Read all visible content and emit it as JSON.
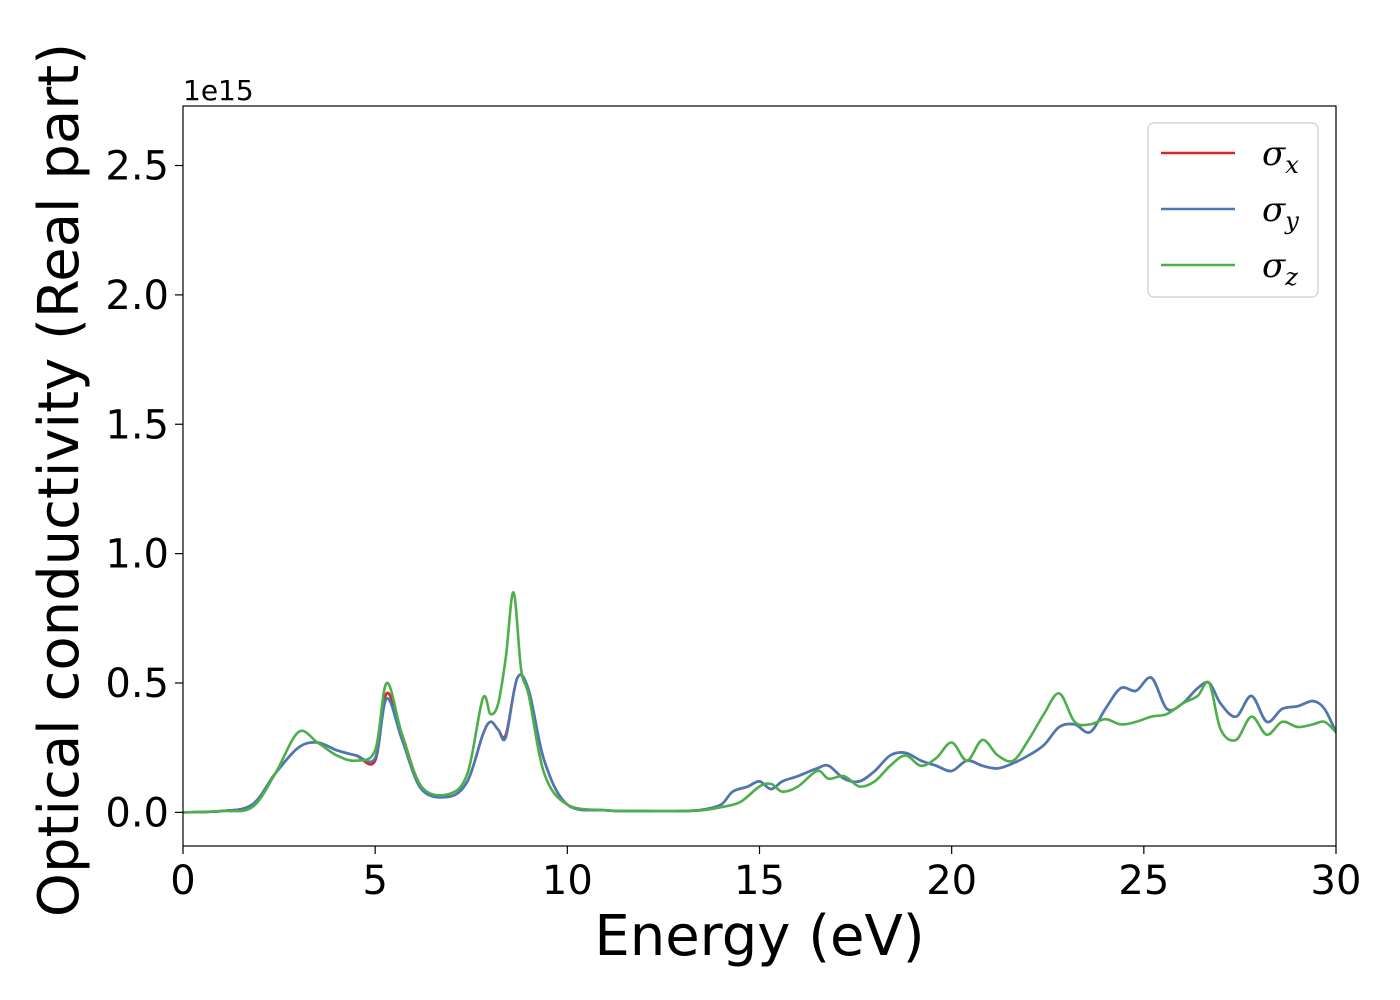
{
  "chart_data": {
    "type": "line",
    "xlabel": "Energy (eV)",
    "ylabel": "Optical conductivity (Real part)",
    "y_offset_text": "1e15",
    "xlim": [
      0,
      30
    ],
    "ylim": [
      -0.13,
      2.73
    ],
    "x_ticks": [
      0,
      5,
      10,
      15,
      20,
      25,
      30
    ],
    "x_tick_labels": [
      "0",
      "5",
      "10",
      "15",
      "20",
      "25",
      "30"
    ],
    "y_ticks": [
      0.0,
      0.5,
      1.0,
      1.5,
      2.0,
      2.5
    ],
    "y_tick_labels": [
      "0.0",
      "0.5",
      "1.0",
      "1.5",
      "2.0",
      "2.5"
    ],
    "grid": false,
    "legend_position": "top-right",
    "series": [
      {
        "name": "σx",
        "symbol": "σ",
        "subscript": "x",
        "color": "#d62728",
        "x": [
          0,
          1,
          1.8,
          2.4,
          3.0,
          3.5,
          4.0,
          4.5,
          5.0,
          5.3,
          5.7,
          6.2,
          6.9,
          7.4,
          7.8,
          8.0,
          8.2,
          8.4,
          8.7,
          9.0,
          9.4,
          10.0,
          11,
          12,
          13,
          13.5,
          14.0,
          14.3,
          14.7,
          15.0,
          15.3,
          15.6,
          16.0,
          16.5,
          16.8,
          17.2,
          17.6,
          18.0,
          18.4,
          18.8,
          19.2,
          19.6,
          20.0,
          20.4,
          20.8,
          21.2,
          21.6,
          22.0,
          22.4,
          22.8,
          23.2,
          23.6,
          24.0,
          24.4,
          24.8,
          25.2,
          25.6,
          26.0,
          26.4,
          26.7,
          27.0,
          27.4,
          27.8,
          28.2,
          28.6,
          29.0,
          29.4,
          29.7,
          30.0
        ],
        "y": [
          0.0,
          0.005,
          0.03,
          0.15,
          0.25,
          0.27,
          0.24,
          0.22,
          0.2,
          0.46,
          0.3,
          0.1,
          0.06,
          0.12,
          0.3,
          0.35,
          0.32,
          0.3,
          0.52,
          0.47,
          0.2,
          0.03,
          0.008,
          0.005,
          0.005,
          0.01,
          0.03,
          0.08,
          0.1,
          0.12,
          0.09,
          0.12,
          0.14,
          0.17,
          0.18,
          0.13,
          0.12,
          0.16,
          0.22,
          0.23,
          0.2,
          0.18,
          0.16,
          0.2,
          0.18,
          0.17,
          0.19,
          0.22,
          0.26,
          0.33,
          0.34,
          0.31,
          0.4,
          0.48,
          0.47,
          0.52,
          0.4,
          0.42,
          0.48,
          0.5,
          0.42,
          0.37,
          0.45,
          0.35,
          0.4,
          0.41,
          0.43,
          0.4,
          0.31
        ]
      },
      {
        "name": "σy",
        "symbol": "σ",
        "subscript": "y",
        "color": "#4a7ab5",
        "x": [
          0,
          1,
          1.8,
          2.4,
          3.0,
          3.5,
          4.0,
          4.5,
          5.0,
          5.3,
          5.7,
          6.2,
          6.9,
          7.4,
          7.8,
          8.0,
          8.2,
          8.4,
          8.7,
          9.0,
          9.4,
          10.0,
          11,
          12,
          13,
          13.5,
          14.0,
          14.3,
          14.7,
          15.0,
          15.3,
          15.6,
          16.0,
          16.5,
          16.8,
          17.2,
          17.6,
          18.0,
          18.4,
          18.8,
          19.2,
          19.6,
          20.0,
          20.4,
          20.8,
          21.2,
          21.6,
          22.0,
          22.4,
          22.8,
          23.2,
          23.6,
          24.0,
          24.4,
          24.8,
          25.2,
          25.6,
          26.0,
          26.4,
          26.7,
          27.0,
          27.4,
          27.8,
          28.2,
          28.6,
          29.0,
          29.4,
          29.7,
          30.0
        ],
        "y": [
          0.0,
          0.005,
          0.03,
          0.15,
          0.25,
          0.27,
          0.24,
          0.22,
          0.21,
          0.44,
          0.28,
          0.09,
          0.06,
          0.12,
          0.3,
          0.35,
          0.32,
          0.29,
          0.52,
          0.47,
          0.2,
          0.03,
          0.008,
          0.005,
          0.005,
          0.01,
          0.03,
          0.08,
          0.1,
          0.12,
          0.09,
          0.12,
          0.14,
          0.17,
          0.18,
          0.13,
          0.12,
          0.16,
          0.22,
          0.23,
          0.2,
          0.18,
          0.16,
          0.2,
          0.18,
          0.17,
          0.19,
          0.22,
          0.26,
          0.33,
          0.34,
          0.31,
          0.4,
          0.48,
          0.47,
          0.52,
          0.4,
          0.42,
          0.48,
          0.5,
          0.42,
          0.37,
          0.45,
          0.35,
          0.4,
          0.41,
          0.43,
          0.4,
          0.31
        ]
      },
      {
        "name": "σz",
        "symbol": "σ",
        "subscript": "z",
        "color": "#4daf4a",
        "x": [
          0,
          1,
          1.8,
          2.4,
          3.0,
          3.5,
          4.0,
          4.5,
          5.0,
          5.3,
          5.7,
          6.2,
          6.9,
          7.4,
          7.8,
          8.0,
          8.2,
          8.4,
          8.6,
          8.8,
          9.0,
          9.4,
          10.0,
          11,
          12,
          13,
          13.5,
          14.0,
          14.5,
          15.0,
          15.3,
          15.6,
          16.0,
          16.5,
          16.8,
          17.2,
          17.6,
          18.0,
          18.4,
          18.8,
          19.2,
          19.6,
          20.0,
          20.4,
          20.8,
          21.2,
          21.6,
          22.0,
          22.4,
          22.8,
          23.2,
          23.6,
          24.0,
          24.4,
          24.8,
          25.2,
          25.6,
          26.0,
          26.4,
          26.7,
          27.0,
          27.4,
          27.8,
          28.2,
          28.6,
          29.0,
          29.4,
          29.7,
          30.0
        ],
        "y": [
          0.0,
          0.005,
          0.02,
          0.15,
          0.31,
          0.27,
          0.22,
          0.2,
          0.24,
          0.5,
          0.3,
          0.1,
          0.07,
          0.15,
          0.44,
          0.38,
          0.42,
          0.6,
          0.85,
          0.55,
          0.45,
          0.15,
          0.03,
          0.008,
          0.005,
          0.005,
          0.008,
          0.02,
          0.04,
          0.1,
          0.11,
          0.08,
          0.1,
          0.16,
          0.13,
          0.14,
          0.1,
          0.12,
          0.18,
          0.22,
          0.18,
          0.21,
          0.27,
          0.2,
          0.28,
          0.22,
          0.2,
          0.28,
          0.38,
          0.46,
          0.35,
          0.34,
          0.36,
          0.34,
          0.35,
          0.37,
          0.38,
          0.42,
          0.45,
          0.5,
          0.32,
          0.28,
          0.37,
          0.3,
          0.35,
          0.33,
          0.34,
          0.35,
          0.31
        ]
      }
    ]
  }
}
